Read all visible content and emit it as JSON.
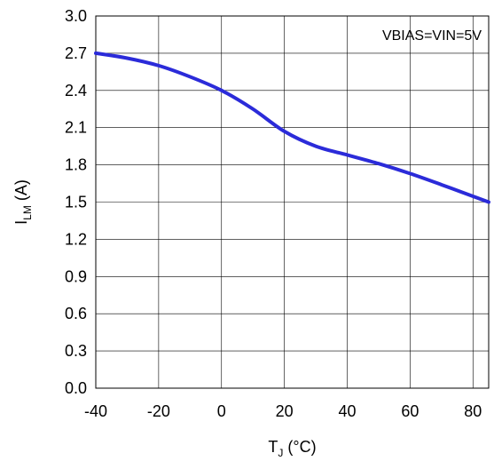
{
  "chart_data": {
    "type": "line",
    "title": "",
    "annotation": "VBIAS=VIN=5V",
    "xlabel": {
      "main": "T",
      "sub": "J",
      "rest": " (°C)"
    },
    "ylabel": {
      "main": "I",
      "sub": "LM",
      "rest": " (A)"
    },
    "xlim": [
      -40,
      85
    ],
    "ylim": [
      0,
      3.0
    ],
    "xticks": [
      -40,
      -20,
      0,
      20,
      40,
      60,
      80
    ],
    "xtick_labels": [
      "-40",
      "-20",
      "0",
      "20",
      "40",
      "60",
      "80"
    ],
    "yticks": [
      0,
      0.3,
      0.6,
      0.9,
      1.2,
      1.5,
      1.8,
      2.1,
      2.4,
      2.7,
      3.0
    ],
    "ytick_labels": [
      "0.0",
      "0.3",
      "0.6",
      "0.9",
      "1.2",
      "1.5",
      "1.8",
      "2.1",
      "2.4",
      "2.7",
      "3.0"
    ],
    "grid": true,
    "series": [
      {
        "color": "#2b2bd9",
        "x": [
          -40,
          -30,
          -20,
          -10,
          0,
          10,
          20,
          30,
          40,
          50,
          60,
          70,
          85
        ],
        "y": [
          2.7,
          2.66,
          2.6,
          2.51,
          2.4,
          2.25,
          2.07,
          1.95,
          1.88,
          1.81,
          1.73,
          1.64,
          1.5
        ]
      }
    ]
  }
}
